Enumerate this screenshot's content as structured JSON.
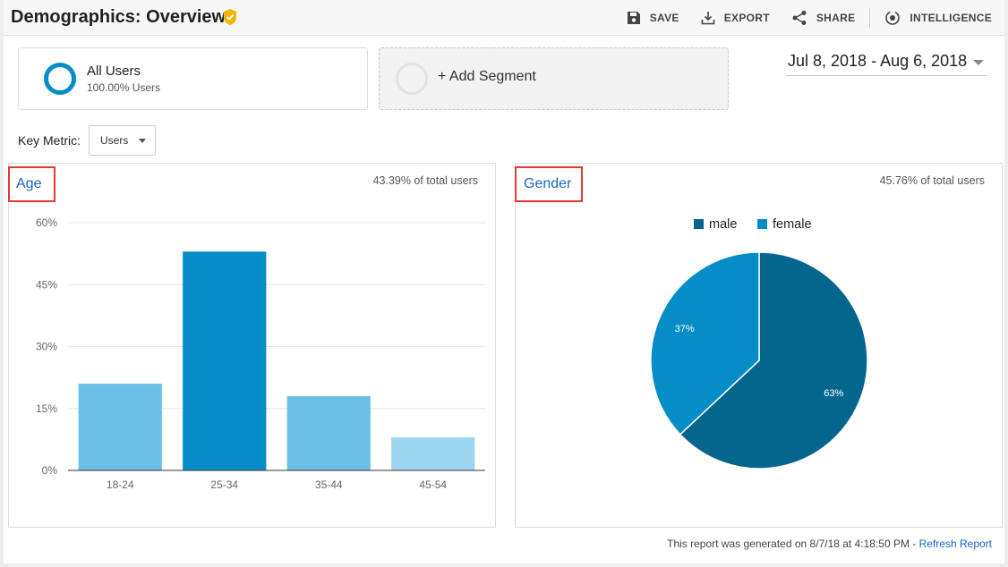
{
  "header": {
    "title": "Demographics: Overview",
    "actions": {
      "save": "SAVE",
      "export": "EXPORT",
      "share": "SHARE",
      "intelligence": "INTELLIGENCE"
    }
  },
  "segments": {
    "active": {
      "name": "All Users",
      "sub": "100.00% Users",
      "color": "#058dc7"
    },
    "add_label": "+ Add Segment"
  },
  "date_range": "Jul 8, 2018 - Aug 6, 2018",
  "key_metric": {
    "label": "Key Metric:",
    "value": "Users"
  },
  "age_panel": {
    "title": "Age",
    "pct_total": "43.39% of total users"
  },
  "gender_panel": {
    "title": "Gender",
    "pct_total": "45.76% of total users"
  },
  "footer": {
    "text": "This report was generated on 8/7/18 at 4:18:50 PM - ",
    "link": "Refresh Report"
  },
  "chart_data": [
    {
      "type": "bar",
      "categories": [
        "18-24",
        "25-34",
        "35-44",
        "45-54"
      ],
      "values": [
        21,
        53,
        18,
        8
      ],
      "colors": [
        "#6cc0e5",
        "#058dc7",
        "#6cc0e5",
        "#9cd5ef"
      ],
      "yticks": [
        "0%",
        "15%",
        "30%",
        "45%",
        "60%"
      ],
      "ylim": [
        0,
        60
      ],
      "grid": true
    },
    {
      "type": "pie",
      "labels": [
        "male",
        "female"
      ],
      "values": [
        63,
        37
      ],
      "slice_labels": [
        "63%",
        "37%"
      ],
      "colors": [
        "#05668d",
        "#058dc7"
      ],
      "legend": "top"
    }
  ]
}
